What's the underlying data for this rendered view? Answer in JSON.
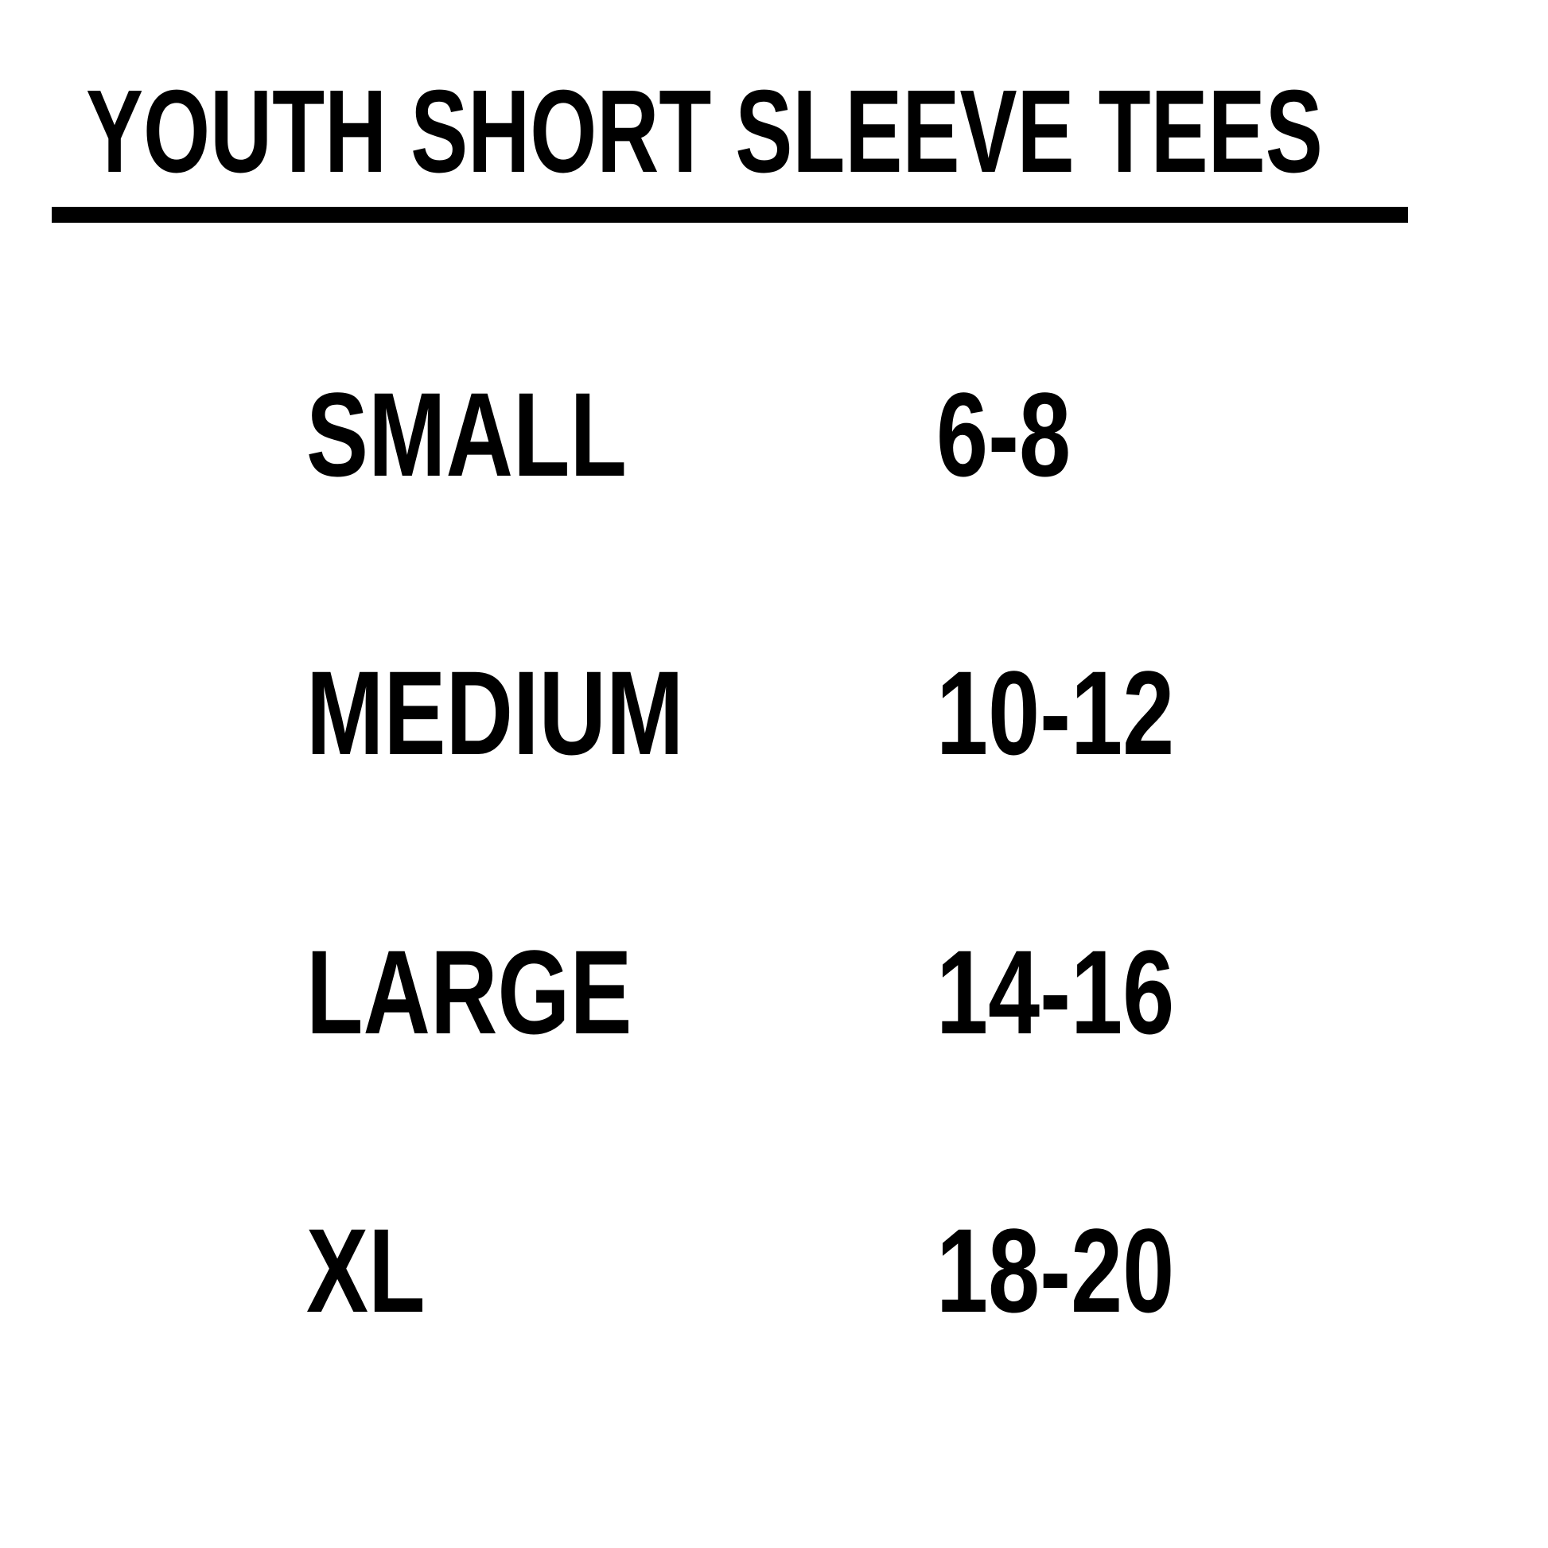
{
  "page": {
    "background_color": "#ffffff",
    "text_color": "#000000",
    "divider_color": "#000000"
  },
  "header": {
    "title": "YOUTH SHORT SLEEVE TEES"
  },
  "size_chart": {
    "rows": [
      {
        "size": "SMALL",
        "range": "6-8"
      },
      {
        "size": "MEDIUM",
        "range": "10-12"
      },
      {
        "size": "LARGE",
        "range": "14-16"
      },
      {
        "size": "XL",
        "range": "18-20"
      }
    ]
  }
}
